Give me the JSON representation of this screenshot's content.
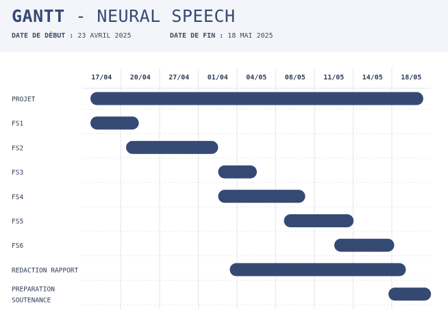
{
  "header": {
    "title_bold": "GANTT",
    "title_rest": " - NEURAL SPEECH",
    "start_key": "DATE DE DÉBUT :",
    "start_value": " 23 AVRIL 2025",
    "end_key": "DATE DE FIN :",
    "end_value": " 18 MAI 2025"
  },
  "colors": {
    "bar": "#354a73",
    "header_bg": "#f3f5fa",
    "grid": "#e3e6ec"
  },
  "chart_data": {
    "type": "gantt",
    "x_ticks": [
      "17/04",
      "20/04",
      "27/04",
      "01/04",
      "04/05",
      "08/05",
      "11/05",
      "14/05",
      "18/05"
    ],
    "tasks": [
      {
        "label": [
          "PROJET"
        ],
        "start": 0.0,
        "end": 8.6
      },
      {
        "label": [
          "FS1"
        ],
        "start": 0.0,
        "end": 1.25
      },
      {
        "label": [
          "FS2"
        ],
        "start": 0.92,
        "end": 3.3
      },
      {
        "label": [
          "FS3"
        ],
        "start": 3.3,
        "end": 4.3
      },
      {
        "label": [
          "FS4"
        ],
        "start": 3.3,
        "end": 5.55
      },
      {
        "label": [
          "FS5"
        ],
        "start": 5.0,
        "end": 6.8
      },
      {
        "label": [
          "FS6"
        ],
        "start": 6.3,
        "end": 7.85
      },
      {
        "label": [
          "REDACTION RAPPORT"
        ],
        "start": 3.6,
        "end": 8.15
      },
      {
        "label": [
          "PREPARATION",
          "SOUTENANCE"
        ],
        "start": 7.7,
        "end": 8.8
      }
    ]
  }
}
